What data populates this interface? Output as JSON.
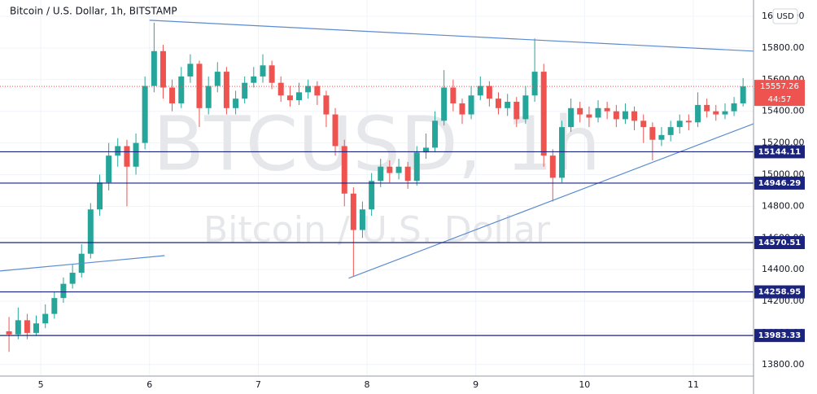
{
  "chart_data": {
    "type": "candlestick",
    "title": "Bitcoin / U.S. Dollar, 1h, BITSTAMP",
    "watermark": [
      "BTCUSD, 1h",
      "Bitcoin / U.S. Dollar"
    ],
    "currency": "USD",
    "x": [
      4.708,
      4.792,
      4.875,
      4.958,
      5.042,
      5.125,
      5.208,
      5.292,
      5.375,
      5.458,
      5.542,
      5.625,
      5.708,
      5.792,
      5.875,
      5.958,
      6.042,
      6.125,
      6.208,
      6.292,
      6.375,
      6.458,
      6.542,
      6.625,
      6.708,
      6.792,
      6.875,
      6.958,
      7.042,
      7.125,
      7.208,
      7.292,
      7.375,
      7.458,
      7.542,
      7.625,
      7.708,
      7.792,
      7.875,
      7.958,
      8.042,
      8.125,
      8.208,
      8.292,
      8.375,
      8.458,
      8.542,
      8.625,
      8.708,
      8.792,
      8.875,
      8.958,
      9.042,
      9.125,
      9.208,
      9.292,
      9.375,
      9.458,
      9.542,
      9.625,
      9.708,
      9.792,
      9.875,
      9.958,
      10.042,
      10.125,
      10.208,
      10.292,
      10.375,
      10.458,
      10.542,
      10.625,
      10.708,
      10.792,
      10.875,
      10.958,
      11.042,
      11.125,
      11.208,
      11.292,
      11.375,
      11.458
    ],
    "open": [
      14010,
      13990,
      14080,
      14000,
      14060,
      14120,
      14220,
      14310,
      14380,
      14500,
      14780,
      14950,
      15120,
      15180,
      15050,
      15200,
      15560,
      15780,
      15550,
      15450,
      15620,
      15700,
      15420,
      15560,
      15650,
      15420,
      15480,
      15580,
      15620,
      15690,
      15580,
      15500,
      15470,
      15520,
      15560,
      15500,
      15380,
      15180,
      14880,
      14650,
      14780,
      14960,
      15050,
      15010,
      15050,
      14960,
      15140,
      15170,
      15340,
      15550,
      15450,
      15380,
      15500,
      15560,
      15480,
      15420,
      15460,
      15350,
      15500,
      15650,
      15120,
      14980,
      15300,
      15420,
      15380,
      15360,
      15420,
      15400,
      15350,
      15400,
      15340,
      15300,
      15220,
      15250,
      15300,
      15340,
      15330,
      15440,
      15400,
      15380,
      15400,
      15450
    ],
    "high": [
      14100,
      14160,
      14120,
      14110,
      14180,
      14260,
      14350,
      14430,
      14560,
      14820,
      15000,
      15200,
      15230,
      15220,
      15260,
      15620,
      15960,
      15820,
      15600,
      15680,
      15760,
      15720,
      15620,
      15710,
      15680,
      15530,
      15620,
      15680,
      15760,
      15720,
      15620,
      15560,
      15580,
      15600,
      15590,
      15530,
      15420,
      15220,
      14920,
      14830,
      15010,
      15100,
      15090,
      15100,
      15080,
      15180,
      15260,
      15400,
      15660,
      15600,
      15480,
      15560,
      15620,
      15590,
      15520,
      15510,
      15490,
      15560,
      15860,
      15700,
      15160,
      15340,
      15480,
      15460,
      15430,
      15470,
      15460,
      15440,
      15450,
      15430,
      15380,
      15330,
      15300,
      15340,
      15380,
      15380,
      15520,
      15480,
      15440,
      15450,
      15490,
      15610
    ],
    "low": [
      13880,
      13960,
      13960,
      13980,
      14030,
      14090,
      14190,
      14280,
      14350,
      14470,
      14740,
      14900,
      15050,
      14800,
      15000,
      15160,
      15520,
      15480,
      15400,
      15420,
      15580,
      15300,
      15380,
      15520,
      15380,
      15380,
      15450,
      15550,
      15580,
      15540,
      15460,
      15430,
      15440,
      15480,
      15440,
      15300,
      15120,
      14800,
      14360,
      14600,
      14740,
      14920,
      14950,
      14970,
      14910,
      14930,
      15100,
      15140,
      15310,
      15400,
      15320,
      15350,
      15470,
      15430,
      15380,
      15370,
      15300,
      15320,
      15460,
      15050,
      14830,
      14950,
      15270,
      15330,
      15300,
      15330,
      15350,
      15300,
      15320,
      15280,
      15200,
      15090,
      15180,
      15210,
      15260,
      15280,
      15300,
      15360,
      15340,
      15350,
      15370,
      15430
    ],
    "close": [
      13990,
      14080,
      14000,
      14060,
      14120,
      14220,
      14310,
      14380,
      14500,
      14780,
      14950,
      15120,
      15180,
      15050,
      15200,
      15560,
      15780,
      15550,
      15450,
      15620,
      15700,
      15420,
      15560,
      15650,
      15420,
      15480,
      15580,
      15620,
      15690,
      15580,
      15500,
      15470,
      15520,
      15560,
      15500,
      15380,
      15180,
      14880,
      14650,
      14780,
      14960,
      15050,
      15010,
      15050,
      14960,
      15140,
      15170,
      15340,
      15550,
      15450,
      15380,
      15500,
      15560,
      15480,
      15420,
      15460,
      15350,
      15500,
      15650,
      15120,
      14980,
      15300,
      15420,
      15380,
      15360,
      15420,
      15400,
      15350,
      15400,
      15340,
      15300,
      15220,
      15250,
      15300,
      15340,
      15330,
      15440,
      15400,
      15380,
      15400,
      15450,
      15557.26
    ],
    "up_color": "#26a69a",
    "down_color": "#ef5350",
    "xlim": [
      4.625,
      11.554
    ],
    "xticks": [
      5,
      6,
      7,
      8,
      9,
      10,
      11
    ],
    "ylim": [
      13727,
      16103
    ],
    "yticks": [
      {
        "value": 13800,
        "label": "13800.00"
      },
      {
        "value": 14000,
        "label": "14000.00"
      },
      {
        "value": 14200,
        "label": "14200.00"
      },
      {
        "value": 14400,
        "label": "14400.00"
      },
      {
        "value": 14600,
        "label": "14600.00"
      },
      {
        "value": 14800,
        "label": "14800.00"
      },
      {
        "value": 15000,
        "label": "15000.00"
      },
      {
        "value": 15200,
        "label": "15200.00"
      },
      {
        "value": 15400,
        "label": "15400.00"
      },
      {
        "value": 15600,
        "label": "15600.00"
      },
      {
        "value": 15800,
        "label": "15800.00"
      },
      {
        "value": 16000,
        "label": "16000.00"
      }
    ],
    "grid": true,
    "levels": [
      15144.11,
      14946.29,
      14570.51,
      14258.95,
      13983.33
    ],
    "level_color": "#1a237e",
    "last_price": 15557.26,
    "countdown": "44:57",
    "trendline_color": "#5b8bd0",
    "trendlines": [
      {
        "x": [
          6.0,
          11.554
        ],
        "y": [
          15975,
          15780
        ]
      },
      {
        "x": [
          7.831,
          11.554
        ],
        "y": [
          14345,
          15321
        ]
      },
      {
        "x": [
          4.625,
          6.139
        ],
        "y": [
          14391,
          14488
        ]
      }
    ]
  }
}
